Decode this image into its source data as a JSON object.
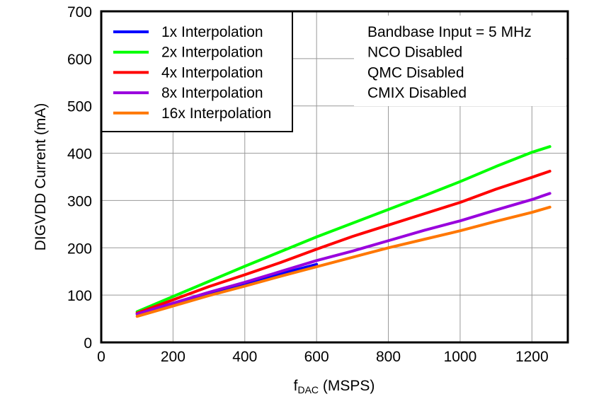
{
  "chart_data": {
    "type": "line",
    "title": "",
    "xlabel_main": "f",
    "xlabel_sub": "DAC",
    "xlabel_unit": " (MSPS)",
    "ylabel": "DIGVDD Current (mA)",
    "xlim": [
      0,
      1300
    ],
    "ylim": [
      0,
      700
    ],
    "xticks": [
      0,
      200,
      400,
      600,
      800,
      1000,
      1200
    ],
    "yticks": [
      0,
      100,
      200,
      300,
      400,
      500,
      600,
      700
    ],
    "grid": true,
    "legend_placement": "top-left",
    "annotations": [
      "Bandbase Input =  5 MHz",
      "NCO Disabled",
      "QMC Disabled",
      "CMIX Disabled"
    ],
    "series": [
      {
        "name": "1x Interpolation",
        "color": "#0000ff",
        "x": [
          100,
          200,
          300,
          400,
          500,
          600
        ],
        "y": [
          60,
          80,
          102,
          123,
          145,
          165
        ]
      },
      {
        "name": "2x Interpolation",
        "color": "#00ff00",
        "x": [
          100,
          200,
          300,
          400,
          500,
          600,
          700,
          800,
          900,
          1000,
          1100,
          1200,
          1250
        ],
        "y": [
          65,
          97,
          129,
          161,
          192,
          223,
          252,
          281,
          310,
          340,
          372,
          402,
          414
        ]
      },
      {
        "name": "4x Interpolation",
        "color": "#ff0000",
        "x": [
          100,
          200,
          300,
          400,
          500,
          600,
          700,
          800,
          900,
          1000,
          1100,
          1200,
          1250
        ],
        "y": [
          62,
          90,
          118,
          143,
          169,
          197,
          224,
          248,
          272,
          296,
          324,
          349,
          362
        ]
      },
      {
        "name": "8x Interpolation",
        "color": "#9900dd",
        "x": [
          100,
          200,
          300,
          400,
          500,
          600,
          700,
          800,
          900,
          1000,
          1100,
          1200,
          1250
        ],
        "y": [
          60,
          83,
          106,
          127,
          150,
          173,
          193,
          215,
          237,
          257,
          280,
          302,
          315
        ]
      },
      {
        "name": "16x Interpolation",
        "color": "#ff7700",
        "x": [
          100,
          200,
          300,
          400,
          500,
          600,
          700,
          800,
          900,
          1000,
          1100,
          1200,
          1250
        ],
        "y": [
          55,
          77,
          99,
          119,
          140,
          160,
          180,
          200,
          218,
          236,
          256,
          275,
          286
        ]
      }
    ]
  }
}
